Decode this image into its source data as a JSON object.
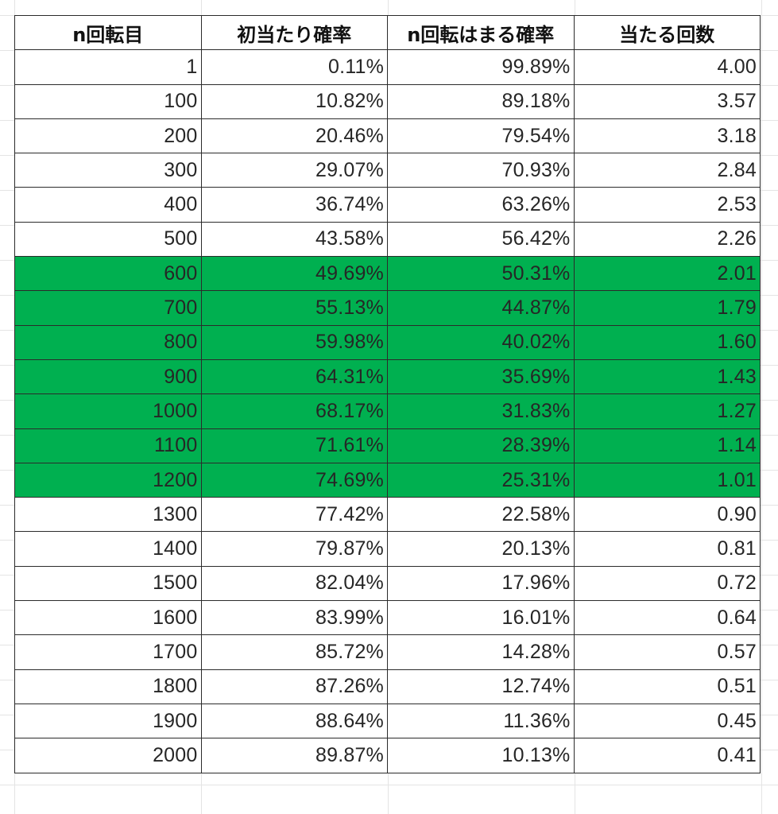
{
  "colors": {
    "highlight": "#00b050",
    "border": "#2b2b2b",
    "gridline": "#e4e4e4"
  },
  "headers": [
    "n回転目",
    "初当たり確率",
    "n回転はまる確率",
    "当たる回数"
  ],
  "rows": [
    {
      "n": "1",
      "hit": "0.11%",
      "miss": "99.89%",
      "count": "4.00",
      "highlight": false
    },
    {
      "n": "100",
      "hit": "10.82%",
      "miss": "89.18%",
      "count": "3.57",
      "highlight": false
    },
    {
      "n": "200",
      "hit": "20.46%",
      "miss": "79.54%",
      "count": "3.18",
      "highlight": false
    },
    {
      "n": "300",
      "hit": "29.07%",
      "miss": "70.93%",
      "count": "2.84",
      "highlight": false
    },
    {
      "n": "400",
      "hit": "36.74%",
      "miss": "63.26%",
      "count": "2.53",
      "highlight": false
    },
    {
      "n": "500",
      "hit": "43.58%",
      "miss": "56.42%",
      "count": "2.26",
      "highlight": false
    },
    {
      "n": "600",
      "hit": "49.69%",
      "miss": "50.31%",
      "count": "2.01",
      "highlight": true
    },
    {
      "n": "700",
      "hit": "55.13%",
      "miss": "44.87%",
      "count": "1.79",
      "highlight": true
    },
    {
      "n": "800",
      "hit": "59.98%",
      "miss": "40.02%",
      "count": "1.60",
      "highlight": true
    },
    {
      "n": "900",
      "hit": "64.31%",
      "miss": "35.69%",
      "count": "1.43",
      "highlight": true
    },
    {
      "n": "1000",
      "hit": "68.17%",
      "miss": "31.83%",
      "count": "1.27",
      "highlight": true
    },
    {
      "n": "1100",
      "hit": "71.61%",
      "miss": "28.39%",
      "count": "1.14",
      "highlight": true
    },
    {
      "n": "1200",
      "hit": "74.69%",
      "miss": "25.31%",
      "count": "1.01",
      "highlight": true
    },
    {
      "n": "1300",
      "hit": "77.42%",
      "miss": "22.58%",
      "count": "0.90",
      "highlight": false
    },
    {
      "n": "1400",
      "hit": "79.87%",
      "miss": "20.13%",
      "count": "0.81",
      "highlight": false
    },
    {
      "n": "1500",
      "hit": "82.04%",
      "miss": "17.96%",
      "count": "0.72",
      "highlight": false
    },
    {
      "n": "1600",
      "hit": "83.99%",
      "miss": "16.01%",
      "count": "0.64",
      "highlight": false
    },
    {
      "n": "1700",
      "hit": "85.72%",
      "miss": "14.28%",
      "count": "0.57",
      "highlight": false
    },
    {
      "n": "1800",
      "hit": "87.26%",
      "miss": "12.74%",
      "count": "0.51",
      "highlight": false
    },
    {
      "n": "1900",
      "hit": "88.64%",
      "miss": "11.36%",
      "count": "0.45",
      "highlight": false
    },
    {
      "n": "2000",
      "hit": "89.87%",
      "miss": "10.13%",
      "count": "0.41",
      "highlight": false
    }
  ]
}
